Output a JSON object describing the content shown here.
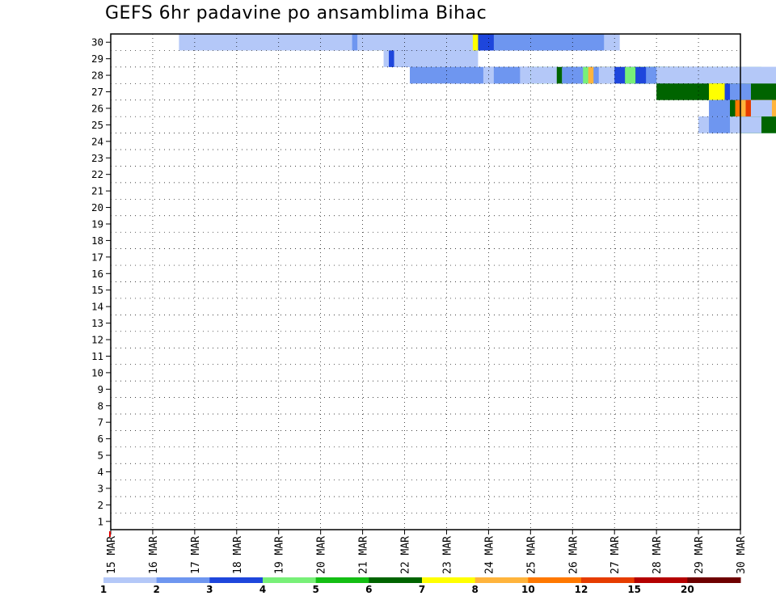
{
  "chart_data": {
    "type": "heatmap",
    "title": "GEFS 6hr padavine po ansamblima Bihac",
    "x_tick_labels": [
      "15 MAR",
      "16 MAR",
      "17 MAR",
      "18 MAR",
      "19 MAR",
      "20 MAR",
      "21 MAR",
      "22 MAR",
      "23 MAR",
      "24 MAR",
      "25 MAR",
      "26 MAR",
      "27 MAR",
      "28 MAR",
      "29 MAR",
      "30 MAR"
    ],
    "y_tick_labels": [
      "1",
      "2",
      "3",
      "4",
      "5",
      "6",
      "7",
      "8",
      "9",
      "10",
      "11",
      "12",
      "13",
      "14",
      "15",
      "16",
      "17",
      "18",
      "19",
      "20",
      "21",
      "22",
      "23",
      "24",
      "25",
      "26",
      "27",
      "28",
      "29",
      "30"
    ],
    "legend": {
      "labels": [
        "1",
        "2",
        "3",
        "4",
        "5",
        "6",
        "7",
        "8",
        "10",
        "12",
        "15",
        "20"
      ],
      "colors": [
        "#b4c8f8",
        "#6e96f0",
        "#1e46dc",
        "#78f078",
        "#14be14",
        "#006400",
        "#ffff00",
        "#ffb43c",
        "#ff7800",
        "#e63c00",
        "#b40000",
        "#6e0000"
      ]
    },
    "x_range": [
      0,
      60
    ],
    "y_range": [
      0,
      30
    ],
    "x_unit": "6-hour steps from 15 MAR 00Z",
    "cells": [
      [
        6.5,
        15,
        30,
        1
      ],
      [
        18.5,
        30,
        30,
        1
      ],
      [
        20.5,
        14,
        30,
        1
      ],
      [
        23,
        20,
        30,
        2
      ],
      [
        24,
        23,
        30,
        2
      ],
      [
        24.5,
        12,
        30,
        3
      ],
      [
        25,
        10,
        30,
        7
      ],
      [
        23.5,
        11,
        30,
        1
      ],
      [
        27,
        7,
        30,
        1
      ],
      [
        26,
        9,
        29,
        1
      ],
      [
        26.5,
        3,
        29,
        3
      ],
      [
        27,
        5,
        29,
        1
      ],
      [
        28.5,
        5,
        28,
        2
      ],
      [
        32.5,
        4,
        28,
        2
      ],
      [
        34,
        5,
        28,
        2
      ],
      [
        35.5,
        7,
        28,
        1
      ],
      [
        36,
        12,
        28,
        2
      ],
      [
        36,
        10,
        28,
        1
      ],
      [
        36,
        8,
        28,
        1
      ],
      [
        36.5,
        6,
        28,
        2
      ],
      [
        37,
        5,
        28,
        2
      ],
      [
        39,
        11,
        28,
        1
      ],
      [
        40,
        5,
        28,
        4
      ],
      [
        40,
        11,
        28,
        1
      ],
      [
        42.5,
        6,
        28,
        6
      ],
      [
        43,
        13,
        28,
        4
      ],
      [
        43.5,
        7,
        28,
        3
      ],
      [
        44,
        1,
        28,
        1
      ],
      [
        43,
        10,
        28,
        2
      ],
      [
        44.5,
        2,
        28,
        2
      ],
      [
        45,
        15,
        28,
        4
      ],
      [
        45.5,
        11,
        28,
        8
      ],
      [
        46,
        20,
        28,
        2
      ],
      [
        46.5,
        5,
        28,
        1
      ],
      [
        48,
        10,
        28,
        3
      ],
      [
        49,
        4,
        28,
        4
      ],
      [
        50,
        12,
        28,
        5
      ],
      [
        50,
        6,
        28,
        3
      ],
      [
        51,
        6,
        28,
        2
      ],
      [
        52,
        16,
        28,
        1
      ],
      [
        53,
        6,
        28,
        1
      ],
      [
        54.5,
        7,
        28,
        1
      ],
      [
        55,
        10,
        28,
        1
      ],
      [
        55,
        17,
        28,
        1
      ],
      [
        52,
        17,
        27,
        6
      ],
      [
        57,
        4,
        27,
        7
      ],
      [
        57.5,
        3,
        27,
        7
      ],
      [
        58.5,
        2,
        27,
        3
      ],
      [
        59,
        2,
        27,
        2
      ],
      [
        57,
        7,
        26,
        1
      ],
      [
        57,
        5,
        26,
        2
      ],
      [
        58,
        3,
        26,
        2
      ],
      [
        58,
        4,
        26,
        2
      ],
      [
        59,
        5,
        26,
        6
      ],
      [
        59.5,
        11,
        26,
        9
      ],
      [
        60,
        7,
        26,
        8
      ],
      [
        60.5,
        1,
        26,
        10
      ],
      [
        61,
        2,
        26,
        1
      ],
      [
        56,
        3,
        25,
        2
      ],
      [
        56,
        10,
        25,
        1
      ],
      [
        57,
        10,
        25,
        2
      ],
      [
        59,
        11,
        25,
        4
      ],
      [
        60,
        8,
        25,
        1
      ],
      [
        60,
        10,
        25,
        5
      ],
      [
        60,
        11,
        25,
        6
      ],
      [
        59,
        3,
        25,
        1
      ]
    ]
  }
}
